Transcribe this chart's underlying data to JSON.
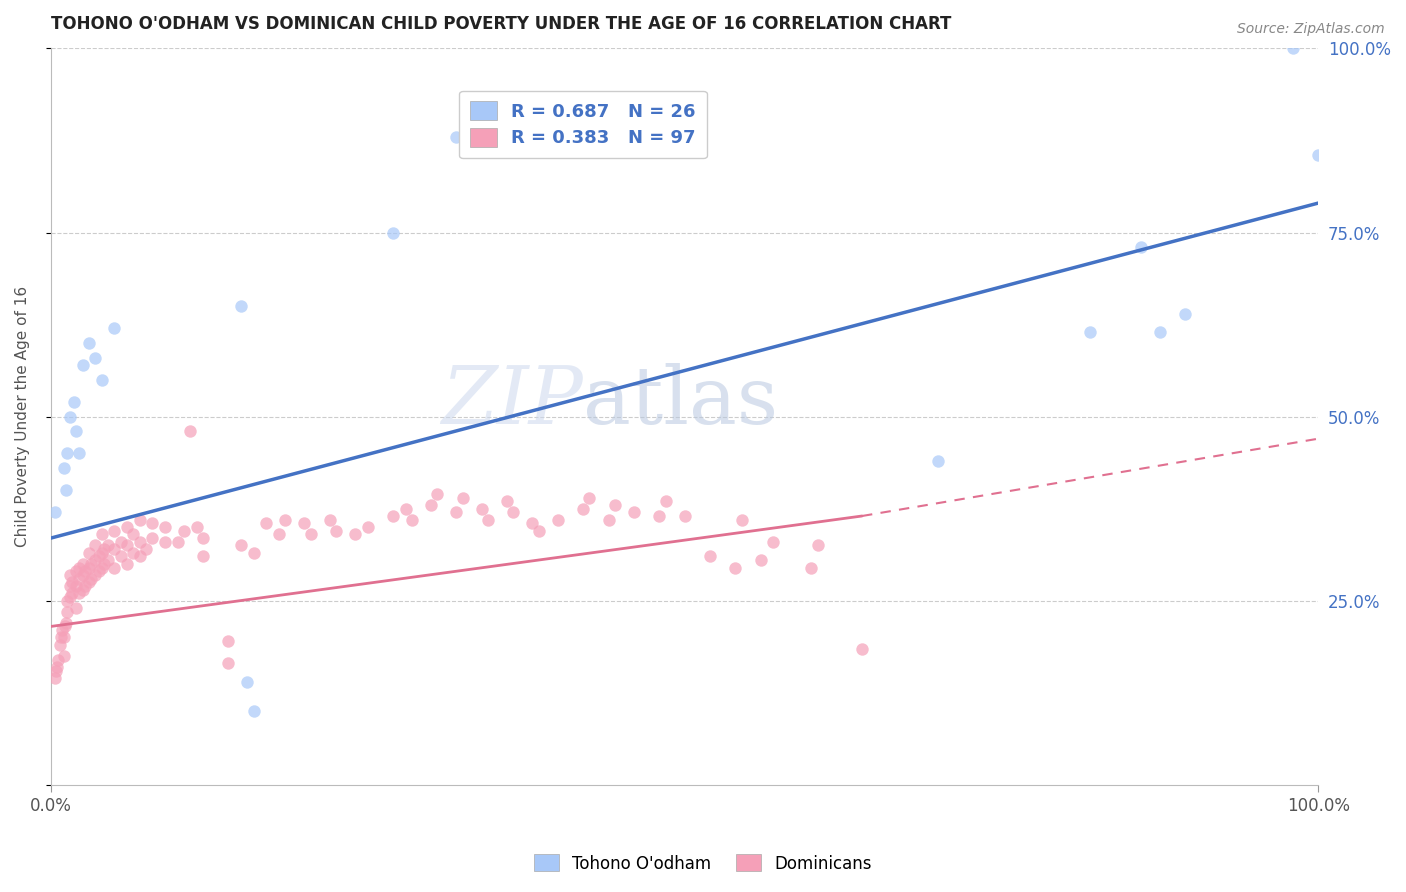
{
  "title": "TOHONO O'ODHAM VS DOMINICAN CHILD POVERTY UNDER THE AGE OF 16 CORRELATION CHART",
  "source": "Source: ZipAtlas.com",
  "ylabel": "Child Poverty Under the Age of 16",
  "xlim": [
    0,
    1
  ],
  "ylim": [
    0,
    1
  ],
  "yticks": [
    0.0,
    0.25,
    0.5,
    0.75,
    1.0
  ],
  "ytick_labels": [
    "",
    "25.0%",
    "50.0%",
    "75.0%",
    "100.0%"
  ],
  "xtick_labels": [
    "0.0%",
    "100.0%"
  ],
  "background_color": "#ffffff",
  "grid_color": "#cccccc",
  "tohono_points": [
    [
      0.003,
      0.37
    ],
    [
      0.01,
      0.43
    ],
    [
      0.012,
      0.4
    ],
    [
      0.013,
      0.45
    ],
    [
      0.015,
      0.5
    ],
    [
      0.018,
      0.52
    ],
    [
      0.02,
      0.48
    ],
    [
      0.022,
      0.45
    ],
    [
      0.025,
      0.57
    ],
    [
      0.03,
      0.6
    ],
    [
      0.035,
      0.58
    ],
    [
      0.04,
      0.55
    ],
    [
      0.05,
      0.62
    ],
    [
      0.15,
      0.65
    ],
    [
      0.155,
      0.14
    ],
    [
      0.16,
      0.1
    ],
    [
      0.27,
      0.75
    ],
    [
      0.32,
      0.88
    ],
    [
      0.7,
      0.44
    ],
    [
      0.82,
      0.615
    ],
    [
      0.86,
      0.73
    ],
    [
      0.875,
      0.615
    ],
    [
      0.895,
      0.64
    ],
    [
      0.98,
      1.0
    ],
    [
      1.0,
      0.855
    ]
  ],
  "dominican_points": [
    [
      0.003,
      0.145
    ],
    [
      0.004,
      0.155
    ],
    [
      0.005,
      0.16
    ],
    [
      0.006,
      0.17
    ],
    [
      0.007,
      0.19
    ],
    [
      0.008,
      0.2
    ],
    [
      0.009,
      0.21
    ],
    [
      0.01,
      0.175
    ],
    [
      0.01,
      0.2
    ],
    [
      0.011,
      0.215
    ],
    [
      0.012,
      0.22
    ],
    [
      0.013,
      0.235
    ],
    [
      0.013,
      0.25
    ],
    [
      0.015,
      0.255
    ],
    [
      0.015,
      0.27
    ],
    [
      0.015,
      0.285
    ],
    [
      0.017,
      0.26
    ],
    [
      0.017,
      0.275
    ],
    [
      0.02,
      0.24
    ],
    [
      0.02,
      0.27
    ],
    [
      0.02,
      0.29
    ],
    [
      0.022,
      0.26
    ],
    [
      0.022,
      0.28
    ],
    [
      0.022,
      0.295
    ],
    [
      0.025,
      0.265
    ],
    [
      0.025,
      0.285
    ],
    [
      0.025,
      0.3
    ],
    [
      0.027,
      0.27
    ],
    [
      0.027,
      0.29
    ],
    [
      0.03,
      0.275
    ],
    [
      0.03,
      0.295
    ],
    [
      0.03,
      0.315
    ],
    [
      0.032,
      0.28
    ],
    [
      0.032,
      0.3
    ],
    [
      0.035,
      0.285
    ],
    [
      0.035,
      0.305
    ],
    [
      0.035,
      0.325
    ],
    [
      0.038,
      0.29
    ],
    [
      0.038,
      0.31
    ],
    [
      0.04,
      0.295
    ],
    [
      0.04,
      0.315
    ],
    [
      0.04,
      0.34
    ],
    [
      0.042,
      0.3
    ],
    [
      0.042,
      0.32
    ],
    [
      0.045,
      0.305
    ],
    [
      0.045,
      0.325
    ],
    [
      0.05,
      0.295
    ],
    [
      0.05,
      0.32
    ],
    [
      0.05,
      0.345
    ],
    [
      0.055,
      0.31
    ],
    [
      0.055,
      0.33
    ],
    [
      0.06,
      0.3
    ],
    [
      0.06,
      0.325
    ],
    [
      0.06,
      0.35
    ],
    [
      0.065,
      0.315
    ],
    [
      0.065,
      0.34
    ],
    [
      0.07,
      0.31
    ],
    [
      0.07,
      0.33
    ],
    [
      0.07,
      0.36
    ],
    [
      0.075,
      0.32
    ],
    [
      0.08,
      0.335
    ],
    [
      0.08,
      0.355
    ],
    [
      0.09,
      0.33
    ],
    [
      0.09,
      0.35
    ],
    [
      0.1,
      0.33
    ],
    [
      0.105,
      0.345
    ],
    [
      0.11,
      0.48
    ],
    [
      0.115,
      0.35
    ],
    [
      0.12,
      0.31
    ],
    [
      0.12,
      0.335
    ],
    [
      0.14,
      0.165
    ],
    [
      0.14,
      0.195
    ],
    [
      0.15,
      0.325
    ],
    [
      0.16,
      0.315
    ],
    [
      0.17,
      0.355
    ],
    [
      0.18,
      0.34
    ],
    [
      0.185,
      0.36
    ],
    [
      0.2,
      0.355
    ],
    [
      0.205,
      0.34
    ],
    [
      0.22,
      0.36
    ],
    [
      0.225,
      0.345
    ],
    [
      0.24,
      0.34
    ],
    [
      0.25,
      0.35
    ],
    [
      0.27,
      0.365
    ],
    [
      0.28,
      0.375
    ],
    [
      0.285,
      0.36
    ],
    [
      0.3,
      0.38
    ],
    [
      0.305,
      0.395
    ],
    [
      0.32,
      0.37
    ],
    [
      0.325,
      0.39
    ],
    [
      0.34,
      0.375
    ],
    [
      0.345,
      0.36
    ],
    [
      0.36,
      0.385
    ],
    [
      0.365,
      0.37
    ],
    [
      0.38,
      0.355
    ],
    [
      0.385,
      0.345
    ],
    [
      0.4,
      0.36
    ],
    [
      0.42,
      0.375
    ],
    [
      0.425,
      0.39
    ],
    [
      0.44,
      0.36
    ],
    [
      0.445,
      0.38
    ],
    [
      0.46,
      0.37
    ],
    [
      0.48,
      0.365
    ],
    [
      0.485,
      0.385
    ],
    [
      0.5,
      0.365
    ],
    [
      0.52,
      0.31
    ],
    [
      0.54,
      0.295
    ],
    [
      0.545,
      0.36
    ],
    [
      0.56,
      0.305
    ],
    [
      0.57,
      0.33
    ],
    [
      0.6,
      0.295
    ],
    [
      0.605,
      0.325
    ],
    [
      0.64,
      0.185
    ]
  ],
  "tohono_line": {
    "x0": 0.0,
    "y0": 0.335,
    "x1": 1.0,
    "y1": 0.79,
    "color": "#4472c4",
    "linewidth": 2.5
  },
  "dominican_line_solid": {
    "x0": 0.0,
    "y0": 0.215,
    "x1": 0.64,
    "y1": 0.365,
    "color": "#e07090",
    "linewidth": 2.0
  },
  "dominican_line_dashed": {
    "x0": 0.64,
    "y0": 0.365,
    "x1": 1.0,
    "y1": 0.47,
    "color": "#e07090",
    "linewidth": 1.5
  },
  "tohono_color": "#a8c8f8",
  "dominican_color": "#f5a0b8",
  "marker_size": 80,
  "right_axis_color": "#4472c4",
  "legend_text_color": "#4472c4",
  "legend_R_color": "#4472c4",
  "watermark_zip_color": "#c8d8f0",
  "watermark_atlas_color": "#b8cce8"
}
